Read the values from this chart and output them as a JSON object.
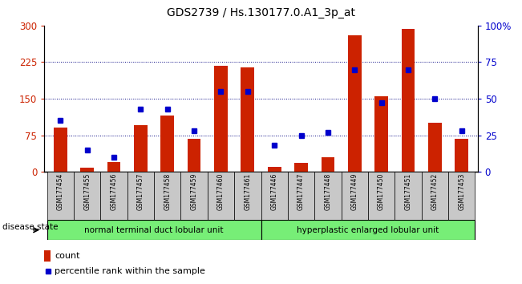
{
  "title": "GDS2739 / Hs.130177.0.A1_3p_at",
  "samples": [
    "GSM177454",
    "GSM177455",
    "GSM177456",
    "GSM177457",
    "GSM177458",
    "GSM177459",
    "GSM177460",
    "GSM177461",
    "GSM177446",
    "GSM177447",
    "GSM177448",
    "GSM177449",
    "GSM177450",
    "GSM177451",
    "GSM177452",
    "GSM177453"
  ],
  "count_values": [
    90,
    8,
    20,
    95,
    115,
    68,
    218,
    215,
    10,
    18,
    30,
    280,
    155,
    293,
    100,
    68
  ],
  "percentile_values": [
    35,
    15,
    10,
    43,
    43,
    28,
    55,
    55,
    18,
    25,
    27,
    70,
    47,
    70,
    50,
    28
  ],
  "group1_label": "normal terminal duct lobular unit",
  "group2_label": "hyperplastic enlarged lobular unit",
  "disease_state_label": "disease state",
  "bar_color": "#cc2200",
  "marker_color": "#0000cc",
  "left_yticks": [
    0,
    75,
    150,
    225,
    300
  ],
  "right_yticks": [
    0,
    25,
    50,
    75,
    100
  ],
  "right_yticklabels": [
    "0",
    "25",
    "50",
    "75",
    "100%"
  ],
  "ylim_left": [
    0,
    300
  ],
  "ylim_right": [
    0,
    100
  ],
  "legend_count_label": "count",
  "legend_pct_label": "percentile rank within the sample",
  "group_bg_color": "#77ee77",
  "sample_bg_color": "#c8c8c8",
  "bar_width": 0.5,
  "grid_color": "#000080",
  "grid_levels": [
    75,
    150,
    225
  ],
  "n_group1": 8,
  "n_group2": 8
}
